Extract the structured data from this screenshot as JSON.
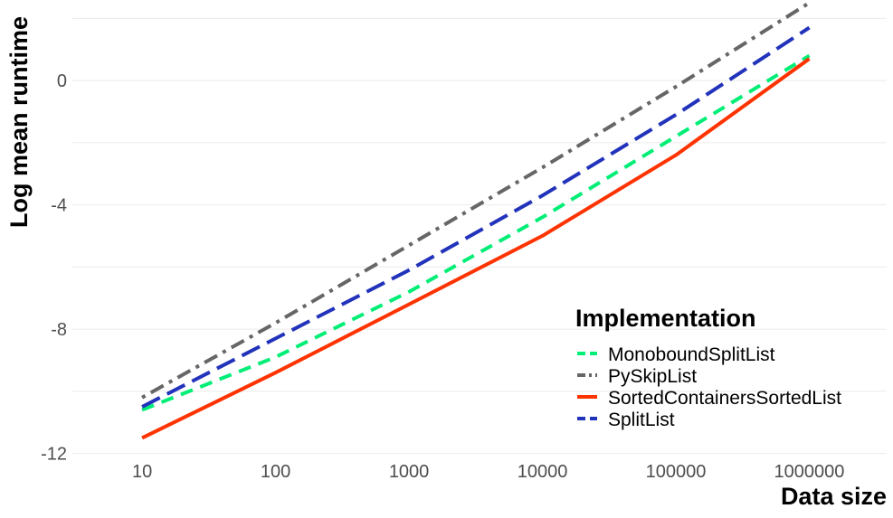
{
  "chart_data": {
    "type": "line",
    "xlabel": "Data size",
    "ylabel": "Log mean runtime",
    "x_scale": "log10",
    "x": [
      10,
      100,
      1000,
      10000,
      100000,
      1000000
    ],
    "x_tick_labels": [
      "10",
      "100",
      "1000",
      "10000",
      "100000",
      "1000000"
    ],
    "xlim": [
      3,
      3800000
    ],
    "y_ticks": [
      0,
      -4,
      -8,
      -12
    ],
    "y_tick_labels": [
      "0",
      "-4",
      "-8",
      "-12"
    ],
    "ylim": [
      -12.1,
      2.3
    ],
    "grid": true,
    "legend": {
      "title": "Implementation",
      "position": "bottom-right"
    },
    "series": [
      {
        "name": "MonoboundSplitList",
        "color": "#00ee76",
        "dash": "dashed",
        "values": [
          -10.6,
          -8.9,
          -6.8,
          -4.4,
          -1.8,
          0.8
        ]
      },
      {
        "name": "PySkipList",
        "color": "#666666",
        "dash": "dotdash",
        "values": [
          -10.2,
          -7.8,
          -5.3,
          -2.8,
          -0.2,
          2.5
        ]
      },
      {
        "name": "SortedContainersSortedList",
        "color": "#ff3300",
        "dash": "solid",
        "values": [
          -11.5,
          -9.4,
          -7.2,
          -5.0,
          -2.4,
          0.7
        ]
      },
      {
        "name": "SplitList",
        "color": "#2233bb",
        "dash": "longdash",
        "values": [
          -10.5,
          -8.3,
          -6.1,
          -3.7,
          -1.1,
          1.7
        ]
      }
    ]
  }
}
